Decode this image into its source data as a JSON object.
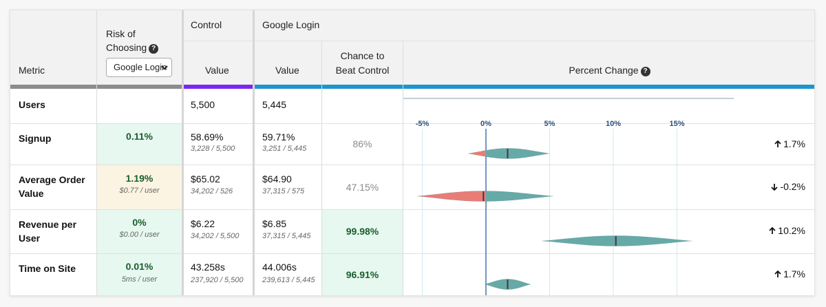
{
  "headers": {
    "metric": "Metric",
    "risk_line1": "Risk of",
    "risk_line2": "Choosing",
    "control": "Control",
    "variant": "Google Login",
    "value": "Value",
    "chance_line1": "Chance to",
    "chance_line2": "Beat Control",
    "percent_change": "Percent Change",
    "help_glyph": "?"
  },
  "risk_select": {
    "selected": "Google Login"
  },
  "colors": {
    "control_bar": "#7a28ef",
    "variant_bar": "#1d95cc",
    "metric_bar": "#8c8c8c",
    "violin_gain": "#66aaa8",
    "violin_loss": "#e87d77",
    "risk_good_bg": "#e6f8ef",
    "risk_warn_bg": "#fbf4e2"
  },
  "axis": {
    "ticks": [
      "-5%",
      "0%",
      "5%",
      "10%",
      "15%"
    ],
    "tick_values": [
      -5,
      0,
      5,
      10,
      15
    ]
  },
  "rows": [
    {
      "metric_lines": [
        "Users",
        ""
      ],
      "risk": "",
      "risk_sub": "",
      "control_value": "5,500",
      "control_sub": "",
      "variant_value": "5,445",
      "variant_sub": "",
      "chance": "",
      "change": "",
      "direction": ""
    },
    {
      "metric_lines": [
        "Signup",
        ""
      ],
      "risk": "0.11%",
      "risk_sub": "",
      "control_value": "58.69%",
      "control_sub": "3,228 / 5,500",
      "variant_value": "59.71%",
      "variant_sub": "3,251 / 5,445",
      "chance": "86%",
      "change": "1.7%",
      "direction": "up",
      "violin": {
        "min": -1.4,
        "max": 5.0,
        "center": 1.7
      }
    },
    {
      "metric_lines": [
        "Average Order",
        "Value"
      ],
      "risk": "1.19%",
      "risk_sub": "$0.77 / user",
      "control_value": "$65.02",
      "control_sub": "34,202 / 526",
      "variant_value": "$64.90",
      "variant_sub": "37,315 / 575",
      "chance": "47.15%",
      "change": "-0.2%",
      "direction": "down",
      "violin": {
        "min": -5.4,
        "max": 5.3,
        "center": -0.2
      }
    },
    {
      "metric_lines": [
        "Revenue per",
        "User"
      ],
      "risk": "0%",
      "risk_sub": "$0.00 / user",
      "control_value": "$6.22",
      "control_sub": "34,202 / 5,500",
      "variant_value": "$6.85",
      "variant_sub": "37,315 / 5,445",
      "chance": "99.98%",
      "change": "10.2%",
      "direction": "up",
      "violin": {
        "min": 4.4,
        "max": 16.2,
        "center": 10.2
      }
    },
    {
      "metric_lines": [
        "Time on Site",
        ""
      ],
      "risk": "0.01%",
      "risk_sub": "5ms / user",
      "control_value": "43.258s",
      "control_sub": "237,920 / 5,500",
      "variant_value": "44.006s",
      "variant_sub": "239,613 / 5,445",
      "chance": "96.91%",
      "change": "1.7%",
      "direction": "up",
      "violin": {
        "min": -0.1,
        "max": 3.5,
        "center": 1.7
      }
    }
  ]
}
